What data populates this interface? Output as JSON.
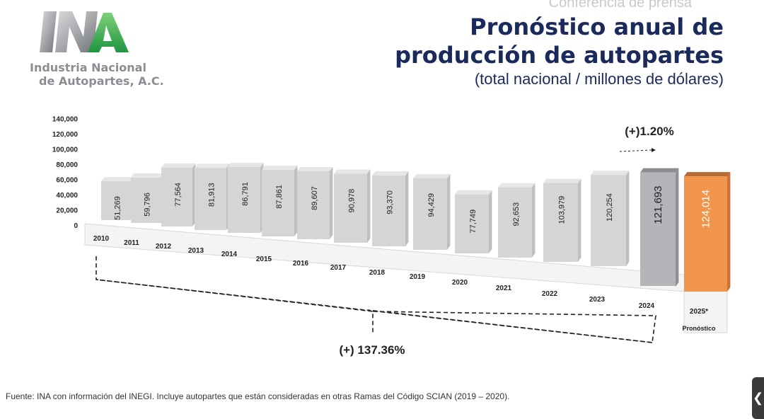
{
  "header": {
    "top_text": "Conferencia de prensa",
    "title_line1": "Pronóstico anual de",
    "title_line2": "producción de autopartes",
    "subtitle": "(total nacional / millones de dólares)"
  },
  "logo": {
    "line1": "Industria Nacional",
    "line2": "de Autopartes, A.C."
  },
  "chart_data": {
    "type": "bar",
    "title": "",
    "categories": [
      "2010",
      "2011",
      "2012",
      "2013",
      "2014",
      "2015",
      "2016",
      "2017",
      "2018",
      "2019",
      "2020",
      "2021",
      "2022",
      "2023",
      "2024",
      "2025*"
    ],
    "values": [
      51269,
      59796,
      77564,
      81913,
      86791,
      87861,
      89607,
      90978,
      93370,
      94429,
      77749,
      92653,
      103979,
      120254,
      121693,
      124014
    ],
    "value_labels": [
      "51,269",
      "59,796",
      "77,564",
      "81,913",
      "86,791",
      "87,861",
      "89,607",
      "90,978",
      "93,370",
      "94,429",
      "77,749",
      "92,653",
      "103,979",
      "120,254",
      "121,693",
      "124,014"
    ],
    "forecast_note": "Pronóstico",
    "y_ticks": [
      "0",
      "20,000",
      "40,000",
      "60,000",
      "80,000",
      "100,000",
      "120,000",
      "140,000"
    ],
    "ylim": [
      0,
      140000
    ],
    "grid": false,
    "colors": {
      "default": "#d5d5d7",
      "highlight_2024": "#b4b5b8",
      "forecast_2025": "#f0954b"
    },
    "annotations": {
      "yoy_growth": "(+)1.20%",
      "period_growth": "(+) 137.36%"
    }
  },
  "footer": {
    "source": "Fuente: INA con información del INEGI. Incluye autopartes que están consideradas en otras Ramas del Código SCIAN (2019 – 2020)."
  },
  "ui": {
    "collapse_glyph": "❮"
  }
}
